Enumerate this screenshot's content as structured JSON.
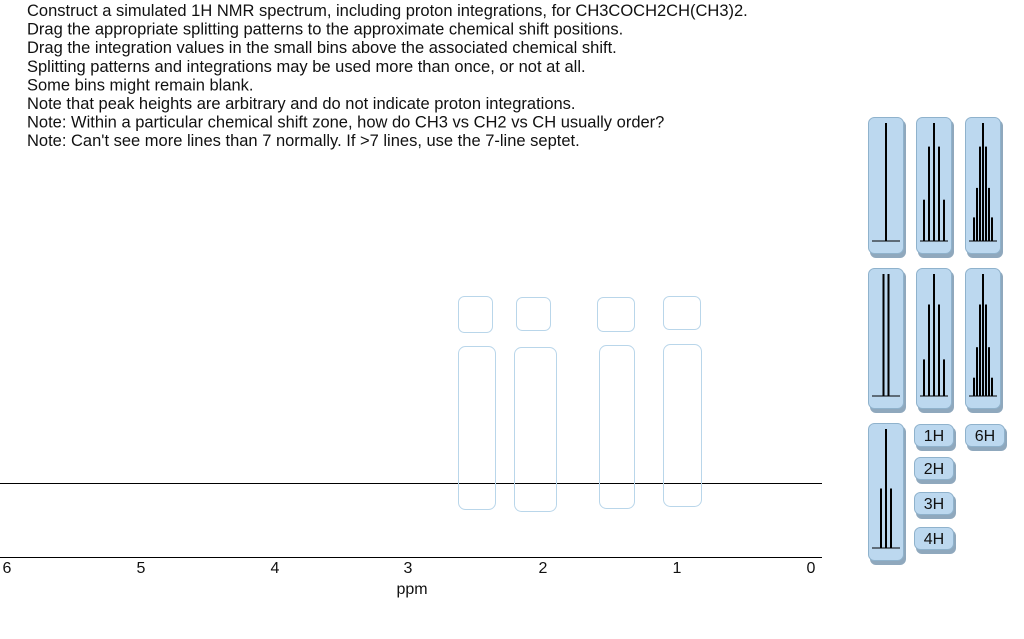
{
  "instructions": [
    "Construct a simulated 1H NMR spectrum, including proton integrations, for CH3COCH2CH(CH3)2.",
    "Drag the appropriate splitting patterns to the approximate chemical shift positions.",
    "Drag the integration values in the small bins above the associated chemical shift.",
    "Splitting patterns and integrations may be used more than once, or not at all.",
    "Some bins might remain blank.",
    "Note that peak heights are arbitrary and do not indicate proton integrations.",
    "Note:  Within a particular chemical shift zone, how do CH3 vs CH2 vs CH usually order?",
    "Note:  Can't see more lines than 7 normally.  If >7 lines, use the 7-line septet."
  ],
  "axis": {
    "ticks": [
      "6",
      "5",
      "4",
      "3",
      "2",
      "1",
      "0"
    ],
    "label": "ppm"
  },
  "integration_buttons": [
    "1H",
    "2H",
    "3H",
    "4H",
    "6H"
  ]
}
